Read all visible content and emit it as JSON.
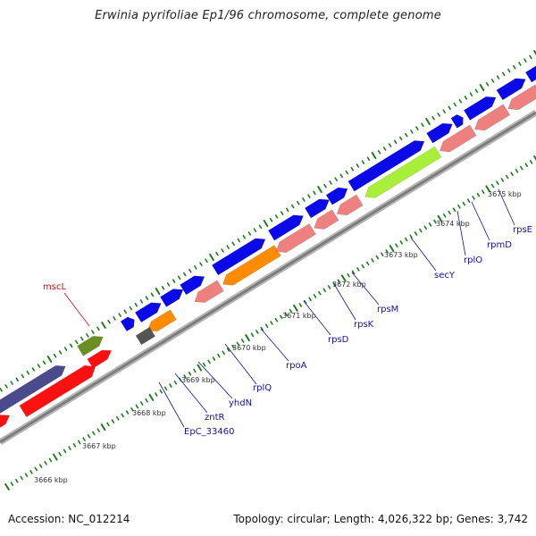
{
  "title": "Erwinia pyrifoliae Ep1/96 chromosome, complete genome",
  "accession": "Accession: NC_012214",
  "summary": "Topology: circular; Length: 4,026,322 bp; Genes: 3,742",
  "colors": {
    "backbone": "#8a8a8a",
    "tick": "#1f7a1f",
    "cds_forward": "#0a0ae8",
    "cds_reverse": "#ff1010",
    "rrna_forward": "#4b4a8c",
    "rrna_reverse": "#ee8080",
    "trna": "#ff8c00",
    "other": "#6b8e23",
    "highlight": "#a8ef3a",
    "pseudo": "#555555",
    "label_gene": "#1010b0",
    "label_highlight": "#cc1010"
  },
  "kbp_ticks": [
    "3666 kbp",
    "3667 kbp",
    "3668 kbp",
    "3669 kbp",
    "3670 kbp",
    "3671 kbp",
    "3672 kbp",
    "3673 kbp",
    "3674 kbp",
    "3675 kbp"
  ],
  "gene_labels": [
    "mscL",
    "EpC_33460",
    "zntR",
    "yhdN",
    "rplQ",
    "rpoA",
    "rpsD",
    "rpsK",
    "rpsM",
    "secY",
    "rplO",
    "rpmD",
    "rpsE"
  ]
}
